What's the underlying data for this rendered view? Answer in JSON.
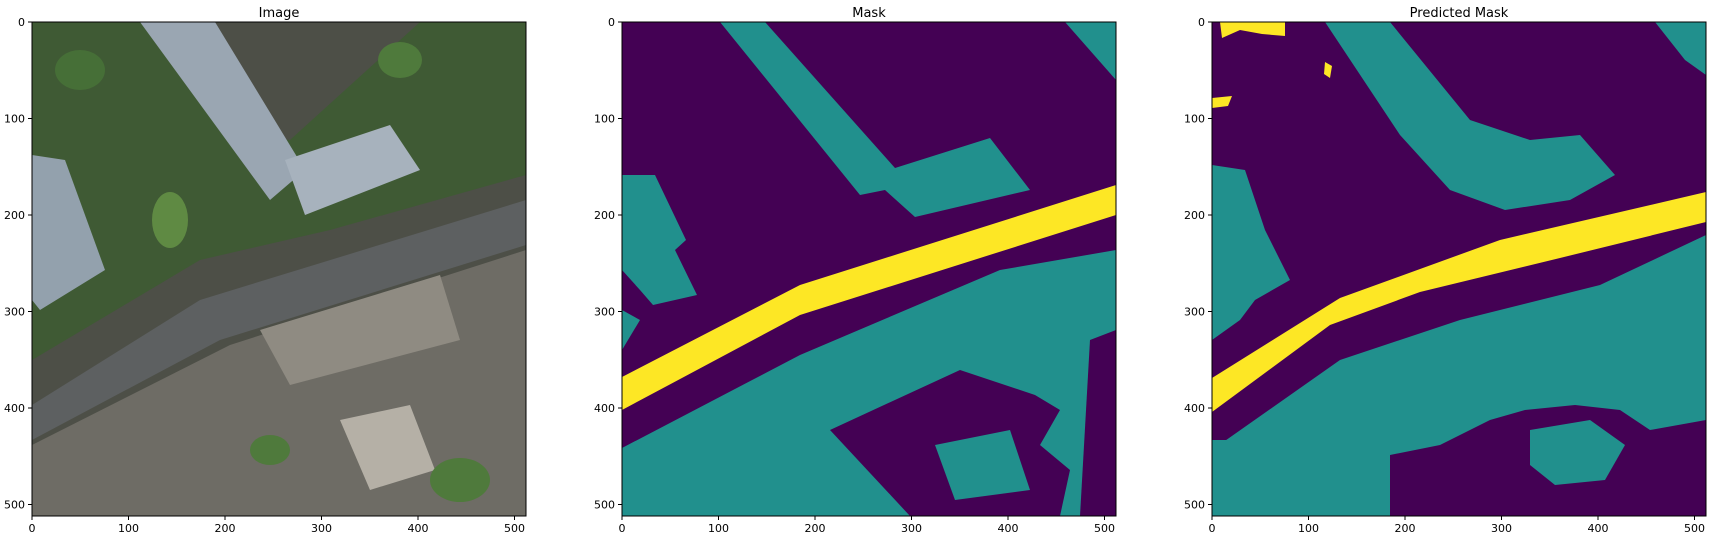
{
  "figure": {
    "panels": [
      {
        "id": "image",
        "title": "Image"
      },
      {
        "id": "mask",
        "title": "Mask"
      },
      {
        "id": "predicted-mask",
        "title": "Predicted Mask"
      }
    ],
    "axes": {
      "x_ticks": [
        "0",
        "100",
        "200",
        "300",
        "400",
        "500"
      ],
      "y_ticks": [
        "0",
        "100",
        "200",
        "300",
        "400",
        "500"
      ]
    }
  },
  "colors": {
    "mask_background": "#440154",
    "mask_building": "#21908d",
    "mask_road": "#fde725",
    "aerial_vegetation": "#3f5a34",
    "aerial_ground": "#4d4f47",
    "aerial_roof": "#9aa6b2",
    "aerial_road": "#5d6061"
  }
}
